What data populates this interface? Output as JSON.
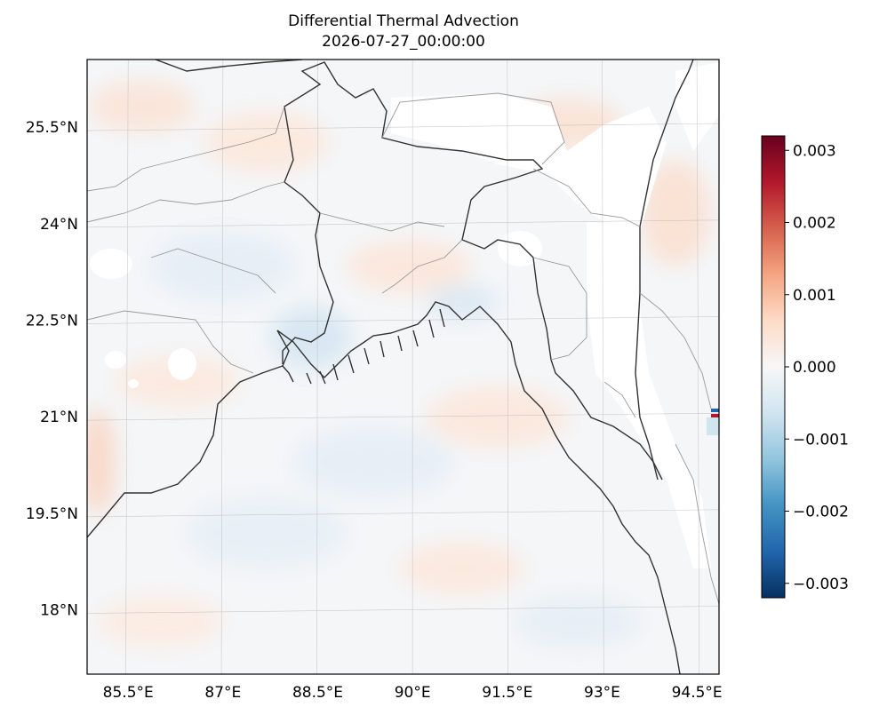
{
  "title": {
    "line1": "Differential Thermal Advection",
    "line2": "2026-07-27_00:00:00"
  },
  "map": {
    "lon_labels": [
      "85.5°E",
      "87°E",
      "88.5°E",
      "90°E",
      "91.5°E",
      "93°E",
      "94.5°E"
    ],
    "lat_labels": [
      "25.5°N",
      "24°N",
      "22.5°N",
      "21°N",
      "19.5°N",
      "18°N"
    ],
    "lon_values": [
      85.5,
      87,
      88.5,
      90,
      91.5,
      93,
      94.5
    ],
    "lat_values": [
      25.5,
      24,
      22.5,
      21,
      19.5,
      18
    ],
    "extent": {
      "lon": [
        84.85,
        94.85
      ],
      "lat": [
        17.0,
        26.55
      ]
    },
    "gridlines": true,
    "field_color_low": "#053061",
    "field_color_mid": "#f7f7f7",
    "field_color_high": "#67001f"
  },
  "colorbar": {
    "ticks": [
      "0.003",
      "0.002",
      "0.001",
      "0.000",
      "−0.001",
      "−0.002",
      "−0.003"
    ],
    "tick_values": [
      0.003,
      0.002,
      0.001,
      0.0,
      -0.001,
      -0.002,
      -0.003
    ],
    "range": [
      -0.0032,
      0.0032
    ],
    "colormap": "RdBu_r"
  }
}
